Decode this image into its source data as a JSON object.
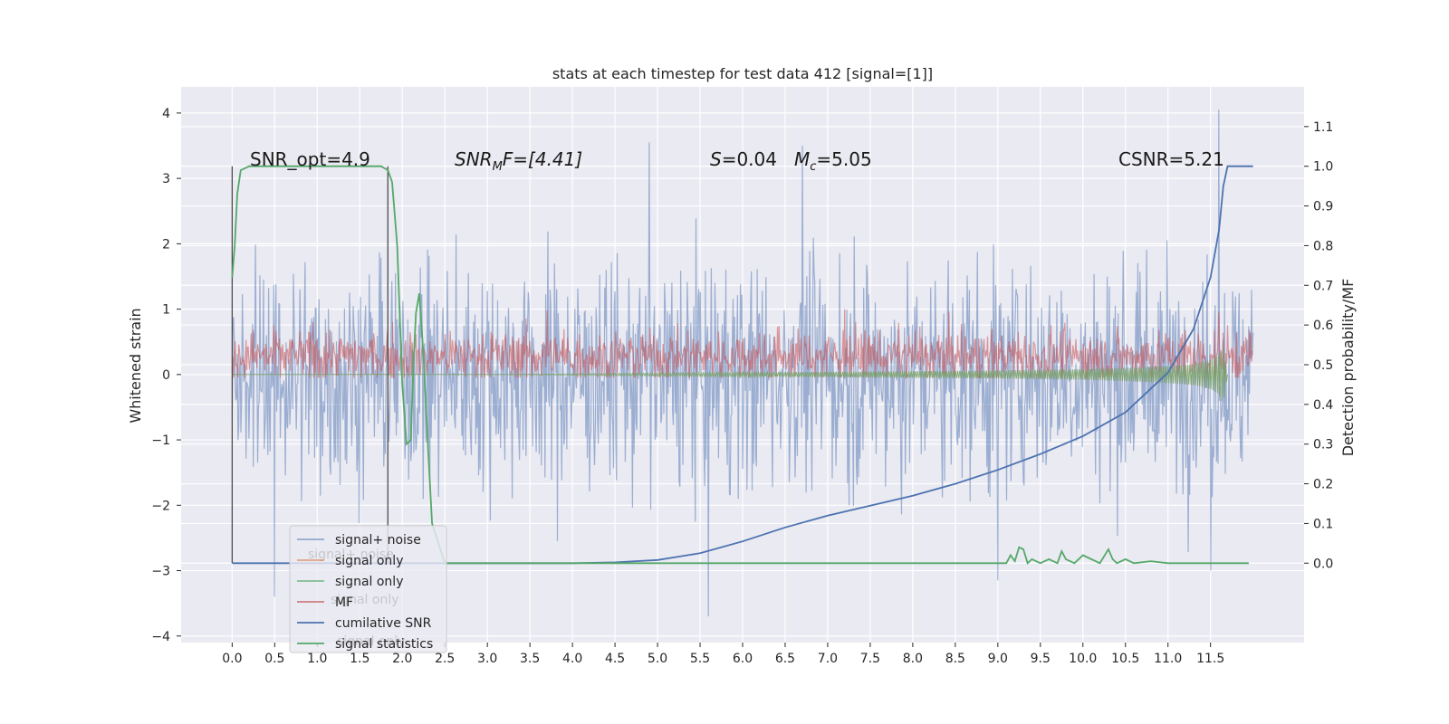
{
  "chart_data": {
    "type": "line",
    "title": "stats at each timestep for test data 412 [signal=[1]]",
    "xlabel": "",
    "ylabel": "Whitened strain",
    "y2label": "Detection probability/MF",
    "xlim": [
      -0.6,
      12.6
    ],
    "ylim": [
      -4.1,
      4.4
    ],
    "y2lim": [
      -0.2,
      1.2
    ],
    "grid": true,
    "legend_position": "lower-left",
    "x_ticks": [
      "0.0",
      "0.5",
      "1.0",
      "1.5",
      "2.0",
      "2.5",
      "3.0",
      "3.5",
      "4.0",
      "4.5",
      "5.0",
      "5.5",
      "6.0",
      "6.5",
      "7.0",
      "7.5",
      "8.0",
      "8.5",
      "9.0",
      "9.5",
      "10.0",
      "10.5",
      "11.0",
      "11.5"
    ],
    "x_tick_values": [
      0.0,
      0.5,
      1.0,
      1.5,
      2.0,
      2.5,
      3.0,
      3.5,
      4.0,
      4.5,
      5.0,
      5.5,
      6.0,
      6.5,
      7.0,
      7.5,
      8.0,
      8.5,
      9.0,
      9.5,
      10.0,
      10.5,
      11.0,
      11.5
    ],
    "y_ticks": [
      "4",
      "3",
      "2",
      "1",
      "0",
      "−1",
      "−2",
      "−3",
      "−4"
    ],
    "y_tick_values": [
      4,
      3,
      2,
      1,
      0,
      -1,
      -2,
      -3,
      -4
    ],
    "y2_ticks": [
      "1.1",
      "1.0",
      "0.9",
      "0.8",
      "0.7",
      "0.6",
      "0.5",
      "0.4",
      "0.3",
      "0.2",
      "0.1",
      "0.0"
    ],
    "y2_tick_values": [
      1.1,
      1.0,
      0.9,
      0.8,
      0.7,
      0.6,
      0.5,
      0.4,
      0.3,
      0.2,
      0.1,
      0.0
    ],
    "annotations": {
      "snr_opt": "SNR_opt=4.9",
      "snr_mf_main": "SNR",
      "snr_mf_sub": "M",
      "snr_mf_rest": "F=[4.41]",
      "s_val": "S",
      "s_rest": "=0.04",
      "mc_main": "M",
      "mc_sub": "c",
      "mc_rest": "=5.05",
      "csnr": "CSNR=5.21"
    },
    "vertical_markers": [
      0.0,
      1.83
    ],
    "colors": {
      "signal_noise": "#4c72b0",
      "signal_only_orange": "#dd8452",
      "signal_only_green": "#55a868",
      "mf": "#c44e52",
      "cumulative_snr": "#4c72b0",
      "signal_statistics": "#55a868",
      "background": "#eaeaf2",
      "grid": "#ffffff"
    },
    "series": [
      {
        "name": "signal+ noise",
        "axis": "left",
        "style": "noise band",
        "envelope_x": [
          0.0,
          12.0
        ],
        "typical_range": [
          -1.3,
          1.3
        ],
        "peaks": [
          [
            0.5,
            -3.4
          ],
          [
            4.9,
            3.55
          ],
          [
            5.6,
            -3.7
          ],
          [
            6.7,
            3.5
          ],
          [
            9.0,
            -3.15
          ],
          [
            11.5,
            -3.0
          ],
          [
            11.6,
            4.05
          ]
        ]
      },
      {
        "name": "signal only",
        "axis": "left",
        "style": "chirp",
        "x": [
          0.0,
          1.0,
          2.0,
          3.0,
          4.0,
          5.0,
          6.0,
          7.0,
          8.0,
          9.0,
          10.0,
          10.5,
          11.0,
          11.3,
          11.5,
          11.6,
          11.65,
          11.7
        ],
        "values_upper": [
          0.0,
          0.0,
          0.0,
          0.0,
          0.01,
          0.02,
          0.03,
          0.04,
          0.05,
          0.06,
          0.08,
          0.1,
          0.13,
          0.16,
          0.22,
          0.3,
          0.4,
          0.0
        ],
        "values_lower": [
          0.0,
          0.0,
          0.0,
          0.0,
          -0.01,
          -0.02,
          -0.03,
          -0.04,
          -0.05,
          -0.06,
          -0.08,
          -0.1,
          -0.13,
          -0.16,
          -0.22,
          -0.3,
          -0.45,
          0.0
        ]
      },
      {
        "name": "signal only",
        "axis": "left",
        "style": "chirp",
        "x": [
          0.0,
          1.0,
          2.0,
          3.0,
          4.0,
          5.0,
          6.0,
          7.0,
          8.0,
          9.0,
          10.0,
          10.5,
          11.0,
          11.3,
          11.5,
          11.6,
          11.65,
          11.7
        ],
        "values_upper": [
          0.0,
          0.0,
          0.0,
          0.0,
          0.01,
          0.02,
          0.03,
          0.04,
          0.05,
          0.06,
          0.08,
          0.1,
          0.13,
          0.16,
          0.22,
          0.3,
          0.4,
          0.0
        ],
        "values_lower": [
          0.0,
          0.0,
          0.0,
          0.0,
          -0.01,
          -0.02,
          -0.03,
          -0.04,
          -0.05,
          -0.06,
          -0.08,
          -0.1,
          -0.13,
          -0.16,
          -0.22,
          -0.3,
          -0.45,
          0.0
        ]
      },
      {
        "name": "MF",
        "axis": "left",
        "style": "noise band",
        "envelope_x": [
          0.0,
          12.0
        ],
        "typical_range": [
          0.0,
          0.55
        ],
        "peaks": [
          [
            0.95,
            0.8
          ],
          [
            3.7,
            0.98
          ],
          [
            7.2,
            1.0
          ],
          [
            11.6,
            0.95
          ]
        ]
      },
      {
        "name": "cumilative SNR",
        "axis": "right",
        "x": [
          0.0,
          1.0,
          2.0,
          3.0,
          4.0,
          4.5,
          5.0,
          5.5,
          6.0,
          6.5,
          7.0,
          7.5,
          8.0,
          8.5,
          9.0,
          9.5,
          10.0,
          10.5,
          11.0,
          11.3,
          11.5,
          11.6,
          11.65,
          11.7,
          12.0
        ],
        "values": [
          0.0,
          0.0,
          0.0,
          0.0,
          0.0,
          0.002,
          0.008,
          0.025,
          0.055,
          0.09,
          0.12,
          0.145,
          0.17,
          0.2,
          0.235,
          0.275,
          0.32,
          0.38,
          0.48,
          0.59,
          0.72,
          0.84,
          0.95,
          1.0,
          1.0
        ]
      },
      {
        "name": "signal statistics",
        "axis": "right",
        "x": [
          0.0,
          0.03,
          0.06,
          0.1,
          0.2,
          0.4,
          0.8,
          1.2,
          1.6,
          1.75,
          1.83,
          1.88,
          1.94,
          2.0,
          2.05,
          2.1,
          2.13,
          2.16,
          2.2,
          2.25,
          2.3,
          2.35,
          2.5,
          3.0,
          4.0,
          5.0,
          6.0,
          7.0,
          8.0,
          9.0,
          9.1,
          9.15,
          9.2,
          9.25,
          9.3,
          9.35,
          9.4,
          9.5,
          9.6,
          9.7,
          9.75,
          9.8,
          9.9,
          10.0,
          10.2,
          10.3,
          10.35,
          10.4,
          10.5,
          10.6,
          10.8,
          11.0,
          11.2,
          11.4,
          11.45,
          11.5,
          11.6,
          11.7,
          11.8,
          11.9,
          11.95
        ],
        "values": [
          0.72,
          0.8,
          0.93,
          0.99,
          1.0,
          1.0,
          1.0,
          1.0,
          1.0,
          1.0,
          0.99,
          0.96,
          0.8,
          0.45,
          0.3,
          0.31,
          0.5,
          0.63,
          0.68,
          0.52,
          0.3,
          0.1,
          0.0,
          0.0,
          0.0,
          0.0,
          0.0,
          0.0,
          0.0,
          0.0,
          0.0,
          0.02,
          0.005,
          0.04,
          0.035,
          0.0,
          0.01,
          0.0,
          0.01,
          0.0,
          0.03,
          0.01,
          0.0,
          0.02,
          0.0,
          0.035,
          0.01,
          0.0,
          0.01,
          0.0,
          0.005,
          0.0,
          0.0,
          0.0,
          0.0,
          0.0,
          0.0,
          0.0,
          0.0,
          0.0,
          0.0
        ]
      }
    ],
    "legend": [
      {
        "label": "signal+ noise",
        "color": "#4c72b0",
        "alpha": 0.55
      },
      {
        "label": "signal only",
        "color": "#dd8452",
        "alpha": 0.7
      },
      {
        "label": "signal only",
        "color": "#55a868",
        "alpha": 0.7
      },
      {
        "label": "MF",
        "color": "#c44e52",
        "alpha": 0.7
      },
      {
        "label": "cumilative SNR",
        "color": "#4c72b0",
        "alpha": 1.0
      },
      {
        "label": "signal statistics",
        "color": "#55a868",
        "alpha": 1.0
      }
    ],
    "ghost_legend": [
      "signal+ noise",
      "signal only",
      "signal only"
    ]
  }
}
